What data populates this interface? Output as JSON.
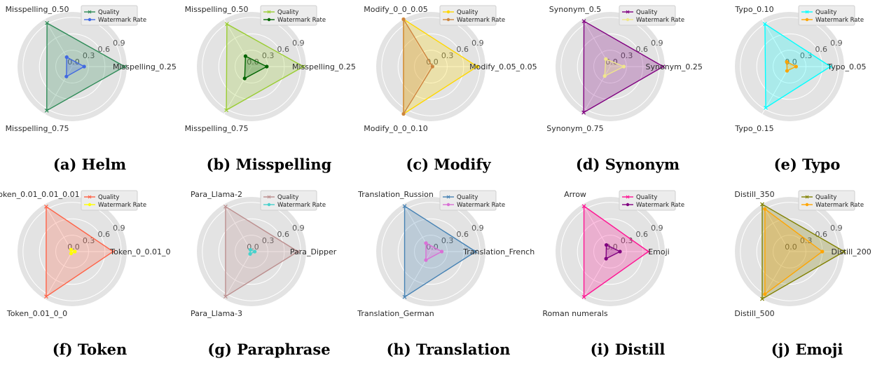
{
  "chart_data": [
    {
      "panel": "a",
      "type": "radar",
      "caption": "(a) Helm",
      "rlim": [
        0,
        1
      ],
      "rticks": [
        "0.0",
        "0.3",
        "0.6",
        "0.9"
      ],
      "axes": [
        "Misspelling_0.25",
        "Misspelling_0.50",
        "Misspelling_0.75"
      ],
      "series": [
        {
          "name": "Quality",
          "color": "#2e8b57",
          "marker": "x",
          "values": [
            0.96,
            0.92,
            0.93
          ]
        },
        {
          "name": "Watermark Rate",
          "color": "#4169e1",
          "marker": "o",
          "values": [
            0.22,
            0.2,
            0.21
          ]
        }
      ]
    },
    {
      "panel": "b",
      "type": "radar",
      "caption": "(b) Misspelling",
      "rlim": [
        0,
        1
      ],
      "rticks": [
        "0.0",
        "0.3",
        "0.6",
        "0.9"
      ],
      "axes": [
        "Misspelling_0.25",
        "Misspelling_0.50",
        "Misspelling_0.75"
      ],
      "series": [
        {
          "name": "Quality",
          "color": "#9acd32",
          "marker": "x",
          "values": [
            0.95,
            0.9,
            0.92
          ]
        },
        {
          "name": "Watermark Rate",
          "color": "#006400",
          "marker": "o",
          "values": [
            0.28,
            0.22,
            0.25
          ]
        }
      ]
    },
    {
      "panel": "c",
      "type": "radar",
      "caption": "(c) Modify",
      "rlim": [
        0,
        1
      ],
      "rticks": [
        "0.0",
        "0.3",
        "0.6",
        "0.9"
      ],
      "axes": [
        "Modify_0.05_0.05",
        "Modify_0_0_0.05",
        "Modify_0_0_0.10"
      ],
      "series": [
        {
          "name": "Quality",
          "color": "#ffd700",
          "marker": "o",
          "values": [
            0.85,
            1.0,
            1.0
          ]
        },
        {
          "name": "Watermark Rate",
          "color": "#cd853f",
          "marker": "o",
          "values": [
            0.03,
            1.0,
            1.0
          ]
        }
      ]
    },
    {
      "panel": "d",
      "type": "radar",
      "caption": "(d) Synonym",
      "rlim": [
        0,
        1
      ],
      "rticks": [
        "0.0",
        "0.3",
        "0.6",
        "0.9"
      ],
      "axes": [
        "Synonym_0.25",
        "Synonym_0.5",
        "Synonym_0.75"
      ],
      "series": [
        {
          "name": "Quality",
          "color": "#800080",
          "marker": "x",
          "values": [
            0.97,
            0.96,
            0.97
          ]
        },
        {
          "name": "Watermark Rate",
          "color": "#f0e68c",
          "marker": "o",
          "values": [
            0.25,
            0.16,
            0.2
          ]
        }
      ]
    },
    {
      "panel": "e",
      "type": "radar",
      "caption": "(e) Typo",
      "rlim": [
        0,
        1
      ],
      "rticks": [
        "0.0",
        "0.3",
        "0.6",
        "0.9"
      ],
      "axes": [
        "Typo_0.05",
        "Typo_0.10",
        "Typo_0.15"
      ],
      "series": [
        {
          "name": "Quality",
          "color": "#00ffff",
          "marker": "x",
          "values": [
            0.75,
            0.9,
            0.87
          ]
        },
        {
          "name": "Watermark Rate",
          "color": "#ffa500",
          "marker": "o",
          "values": [
            0.12,
            0.1,
            0.09
          ]
        }
      ]
    },
    {
      "panel": "f",
      "type": "radar",
      "caption": "(f) Token",
      "rlim": [
        0,
        1
      ],
      "rticks": [
        "0.0",
        "0.3",
        "0.6",
        "0.9"
      ],
      "axes": [
        "Token_0_0.01_0",
        "Token_0.01_0.01_0.01",
        "Token_0.01_0_0"
      ],
      "series": [
        {
          "name": "Quality",
          "color": "#ff6347",
          "marker": "x",
          "values": [
            0.75,
            0.95,
            0.95
          ]
        },
        {
          "name": "Watermark Rate",
          "color": "#ffff00",
          "marker": "o",
          "values": [
            0.05,
            0.04,
            0.04
          ]
        }
      ]
    },
    {
      "panel": "g",
      "type": "radar",
      "caption": "(g) Paraphrase",
      "rlim": [
        0,
        1
      ],
      "rticks": [
        "0.0",
        "0.3",
        "0.6",
        "0.9"
      ],
      "axes": [
        "Para_Dipper",
        "Para_Llama-2",
        "Para_Llama-3"
      ],
      "series": [
        {
          "name": "Quality",
          "color": "#bc8f8f",
          "marker": "x",
          "values": [
            0.85,
            0.95,
            0.95
          ]
        },
        {
          "name": "Watermark Rate",
          "color": "#48d1cc",
          "marker": "o",
          "values": [
            0.06,
            0.04,
            0.05
          ]
        }
      ]
    },
    {
      "panel": "h",
      "type": "radar",
      "caption": "(h) Translation",
      "rlim": [
        0,
        1
      ],
      "rticks": [
        "0.0",
        "0.3",
        "0.6",
        "0.9"
      ],
      "axes": [
        "Translation_French",
        "Translation_Russion",
        "Translation_German"
      ],
      "series": [
        {
          "name": "Quality",
          "color": "#4682b4",
          "marker": "x",
          "values": [
            0.82,
            0.96,
            0.96
          ]
        },
        {
          "name": "Watermark Rate",
          "color": "#da70d6",
          "marker": "o",
          "values": [
            0.2,
            0.18,
            0.18
          ]
        }
      ]
    },
    {
      "panel": "i",
      "type": "radar",
      "caption": "(i) Distill",
      "rlim": [
        0,
        1
      ],
      "rticks": [
        "0.0",
        "0.3",
        "0.6",
        "0.9"
      ],
      "axes": [
        "Emoji",
        "Arrow",
        "Roman numerals"
      ],
      "series": [
        {
          "name": "Quality",
          "color": "#ff1493",
          "marker": "x",
          "values": [
            0.7,
            0.96,
            0.96
          ]
        },
        {
          "name": "Watermark Rate",
          "color": "#800080",
          "marker": "o",
          "values": [
            0.18,
            0.14,
            0.15
          ]
        }
      ]
    },
    {
      "panel": "j",
      "type": "radar",
      "caption": "(j) Emoji",
      "rlim": [
        0,
        1
      ],
      "rticks": [
        "0.0",
        "0.3",
        "0.6",
        "0.9"
      ],
      "axes": [
        "Distill_200",
        "Distill_350",
        "Distill_500"
      ],
      "series": [
        {
          "name": "Quality",
          "color": "#808000",
          "marker": "x",
          "values": [
            1.0,
            1.0,
            1.0
          ]
        },
        {
          "name": "Watermark Rate",
          "color": "#ffa500",
          "marker": "o",
          "values": [
            0.6,
            0.9,
            0.9
          ]
        }
      ]
    }
  ]
}
